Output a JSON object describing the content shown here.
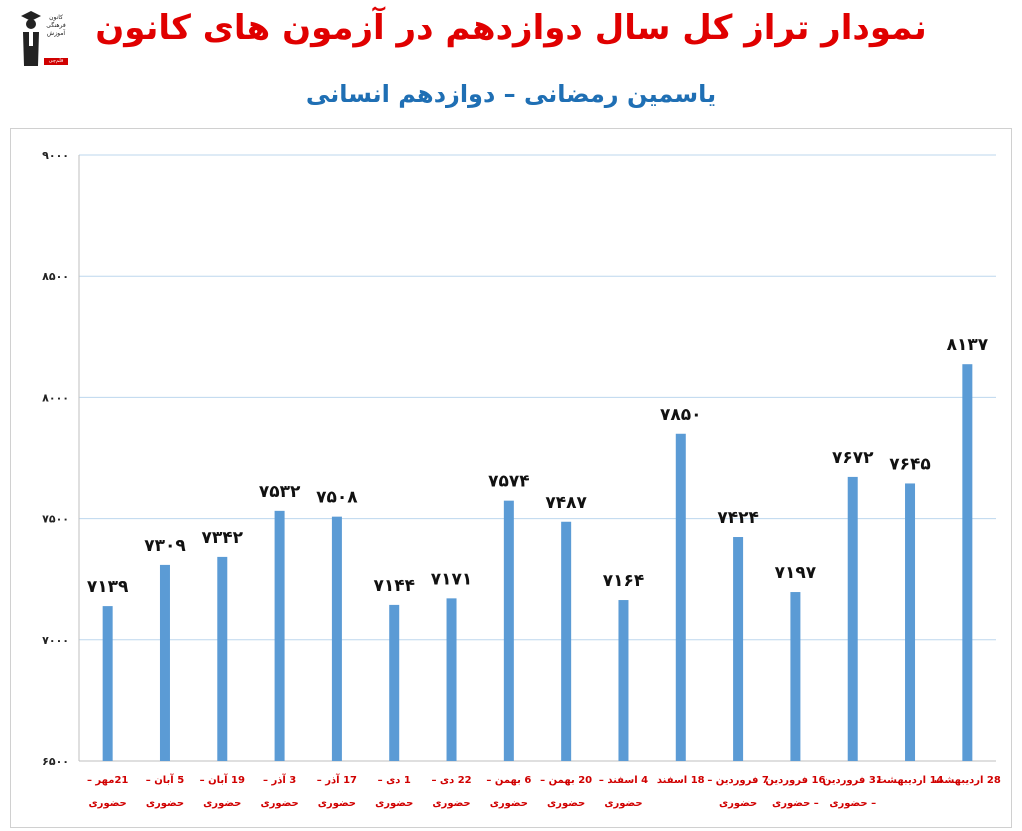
{
  "logo": {
    "lines": [
      "کانون",
      "فرهنگی",
      "آموزش"
    ],
    "tag": "قلم‌چی"
  },
  "colors": {
    "title": "#e00000",
    "subtitle": "#1f6fb4",
    "bar": "#5b9bd5",
    "grid": "#bdd7ee",
    "category_label": "#d00000"
  },
  "chart_data": {
    "type": "bar",
    "title": "نمودار تراز کل سال دوازدهم در آزمون های کانون",
    "subtitle": "یاسمین رمضانی – دوازدهم انسانی",
    "ylim": [
      6500,
      9000
    ],
    "y_ticks": [
      "۶۵۰۰",
      "۷۰۰۰",
      "۷۵۰۰",
      "۸۰۰۰",
      "۸۵۰۰",
      "۹۰۰۰"
    ],
    "y_tick_values": [
      6500,
      7000,
      7500,
      8000,
      8500,
      9000
    ],
    "grid": true,
    "categories": [
      [
        "21مهر –",
        "حضوری"
      ],
      [
        "5 آبان –",
        "حضوری"
      ],
      [
        "19 آبان –",
        "حضوری"
      ],
      [
        "3 آذر –",
        "حضوری"
      ],
      [
        "17 آذر –",
        "حضوری"
      ],
      [
        "1 دی –",
        "حضوری"
      ],
      [
        "22 دی –",
        "حضوری"
      ],
      [
        "6 بهمن –",
        "حضوری"
      ],
      [
        "20 بهمن –",
        "حضوری"
      ],
      [
        "4 اسفند –",
        "حضوری"
      ],
      [
        "18 اسفند",
        ""
      ],
      [
        "7 فروردین –",
        "حضوری"
      ],
      [
        "16 فروردین",
        "– حضوری"
      ],
      [
        "31 فروردین",
        "– حضوری"
      ],
      [
        "14 اردیبهشت",
        ""
      ],
      [
        "28 اردیبهشت",
        ""
      ]
    ],
    "values": [
      7139,
      7309,
      7342,
      7532,
      7508,
      7144,
      7171,
      7574,
      7487,
      7164,
      7850,
      7424,
      7197,
      7672,
      7645,
      8137
    ],
    "data_labels": [
      "۷۱۳۹",
      "۷۳۰۹",
      "۷۳۴۲",
      "۷۵۳۲",
      "۷۵۰۸",
      "۷۱۴۴",
      "۷۱۷۱",
      "۷۵۷۴",
      "۷۴۸۷",
      "۷۱۶۴",
      "۷۸۵۰",
      "۷۴۲۴",
      "۷۱۹۷",
      "۷۶۷۲",
      "۷۶۴۵",
      "۸۱۳۷"
    ]
  }
}
